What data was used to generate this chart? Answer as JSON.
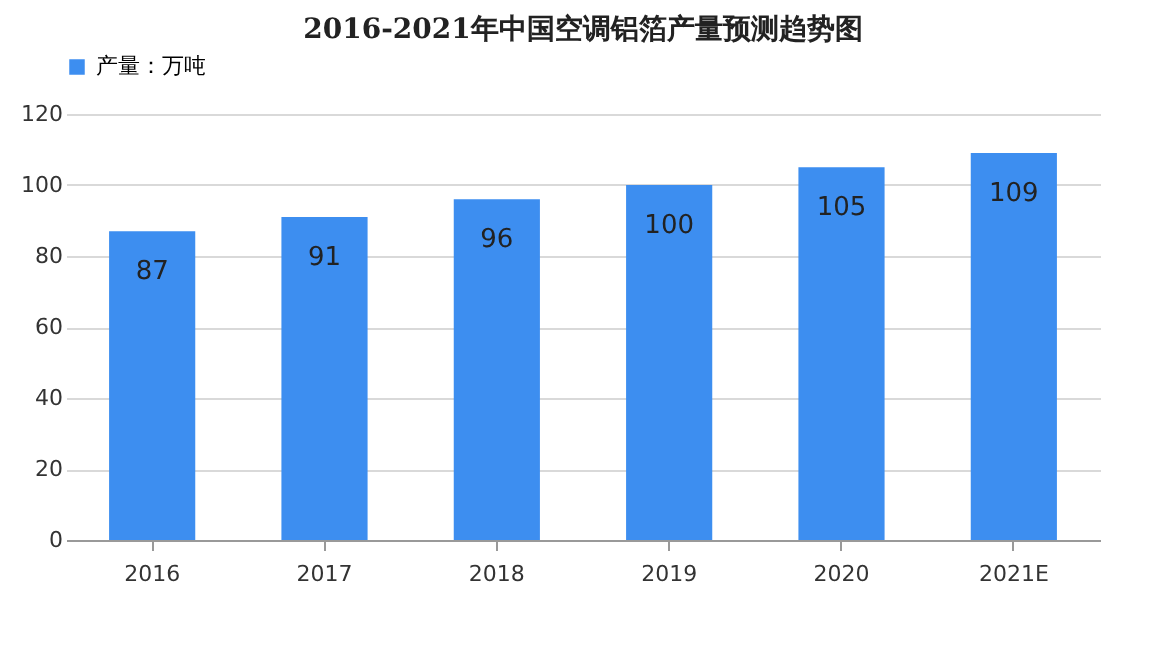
{
  "chart_data": {
    "type": "bar",
    "title": "2016-2021年中国空调铝箔产量预测趋势图",
    "categories": [
      "2016",
      "2017",
      "2018",
      "2019",
      "2020",
      "2021E"
    ],
    "series": [
      {
        "name": "产量：万吨",
        "color": "#3d8ef0",
        "values": [
          87,
          91,
          96,
          100,
          105,
          109
        ]
      }
    ],
    "ylim": [
      0,
      120
    ],
    "yticks": [
      0,
      20,
      40,
      60,
      80,
      100,
      120
    ],
    "grid": "y",
    "legend": "top",
    "data_labels": true
  }
}
